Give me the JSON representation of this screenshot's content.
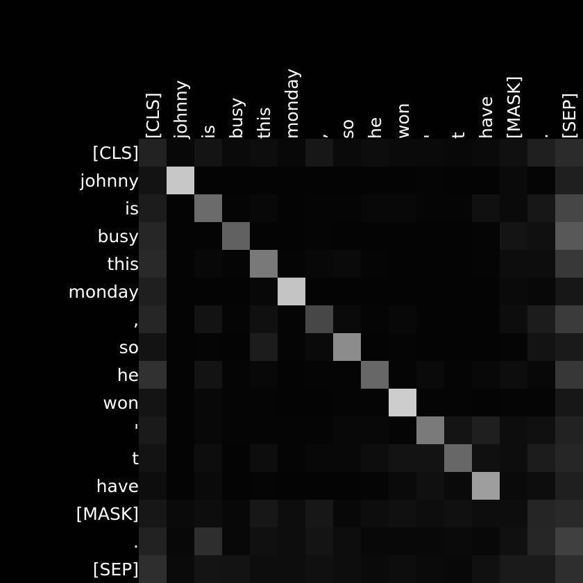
{
  "chart_data": {
    "type": "heatmap",
    "tokens": [
      "[CLS]",
      "johnny",
      "is",
      "busy",
      "this",
      "monday",
      ",",
      "so",
      "he",
      "won",
      "'",
      "t",
      "have",
      "[MASK]",
      ".",
      "[SEP]"
    ],
    "x_tokens": [
      "[CLS]",
      "johnny",
      "is",
      "busy",
      "this",
      "monday",
      ",",
      "so",
      "he",
      "won",
      "'",
      "t",
      "have",
      "[MASK]",
      ".",
      "[SEP]"
    ],
    "y_tokens": [
      "[CLS]",
      "johnny",
      "is",
      "busy",
      "this",
      "monday",
      ",",
      "so",
      "he",
      "won",
      "'",
      "t",
      "have",
      "[MASK]",
      ".",
      "[SEP]"
    ],
    "colormap": "grayscale",
    "value_range": [
      0,
      1
    ],
    "values": [
      [
        0.13,
        0.03,
        0.08,
        0.04,
        0.05,
        0.03,
        0.09,
        0.04,
        0.05,
        0.04,
        0.04,
        0.03,
        0.04,
        0.06,
        0.12,
        0.17
      ],
      [
        0.07,
        0.78,
        0.01,
        0.01,
        0.01,
        0.01,
        0.01,
        0.01,
        0.01,
        0.01,
        0.02,
        0.01,
        0.01,
        0.04,
        0.02,
        0.12
      ],
      [
        0.11,
        0.01,
        0.42,
        0.02,
        0.03,
        0.01,
        0.02,
        0.02,
        0.03,
        0.03,
        0.02,
        0.02,
        0.06,
        0.04,
        0.09,
        0.27
      ],
      [
        0.15,
        0.01,
        0.01,
        0.38,
        0.01,
        0.01,
        0.02,
        0.01,
        0.01,
        0.01,
        0.01,
        0.01,
        0.02,
        0.08,
        0.06,
        0.34
      ],
      [
        0.16,
        0.01,
        0.03,
        0.02,
        0.47,
        0.02,
        0.03,
        0.04,
        0.02,
        0.01,
        0.01,
        0.01,
        0.02,
        0.05,
        0.05,
        0.22
      ],
      [
        0.12,
        0.01,
        0.01,
        0.01,
        0.03,
        0.77,
        0.01,
        0.01,
        0.01,
        0.01,
        0.01,
        0.01,
        0.01,
        0.04,
        0.03,
        0.09
      ],
      [
        0.15,
        0.01,
        0.07,
        0.02,
        0.06,
        0.02,
        0.28,
        0.04,
        0.02,
        0.03,
        0.01,
        0.01,
        0.01,
        0.05,
        0.11,
        0.23
      ],
      [
        0.07,
        0.01,
        0.02,
        0.01,
        0.11,
        0.02,
        0.04,
        0.55,
        0.01,
        0.02,
        0.01,
        0.01,
        0.01,
        0.02,
        0.07,
        0.1
      ],
      [
        0.19,
        0.01,
        0.07,
        0.02,
        0.03,
        0.01,
        0.02,
        0.02,
        0.4,
        0.02,
        0.04,
        0.02,
        0.03,
        0.05,
        0.03,
        0.21
      ],
      [
        0.08,
        0.01,
        0.03,
        0.02,
        0.02,
        0.01,
        0.01,
        0.02,
        0.02,
        0.8,
        0.02,
        0.02,
        0.01,
        0.02,
        0.02,
        0.09
      ],
      [
        0.1,
        0.01,
        0.03,
        0.02,
        0.02,
        0.02,
        0.02,
        0.03,
        0.03,
        0.02,
        0.48,
        0.08,
        0.12,
        0.05,
        0.06,
        0.13
      ],
      [
        0.07,
        0.01,
        0.05,
        0.01,
        0.05,
        0.02,
        0.03,
        0.03,
        0.05,
        0.07,
        0.07,
        0.4,
        0.06,
        0.05,
        0.11,
        0.15
      ],
      [
        0.05,
        0.01,
        0.04,
        0.01,
        0.02,
        0.01,
        0.01,
        0.01,
        0.02,
        0.04,
        0.06,
        0.04,
        0.62,
        0.04,
        0.05,
        0.12
      ],
      [
        0.09,
        0.04,
        0.05,
        0.03,
        0.09,
        0.05,
        0.09,
        0.03,
        0.05,
        0.06,
        0.05,
        0.06,
        0.05,
        0.05,
        0.14,
        0.16
      ],
      [
        0.13,
        0.03,
        0.18,
        0.03,
        0.06,
        0.05,
        0.08,
        0.05,
        0.03,
        0.03,
        0.03,
        0.04,
        0.03,
        0.06,
        0.15,
        0.25
      ],
      [
        0.18,
        0.04,
        0.08,
        0.07,
        0.05,
        0.05,
        0.06,
        0.05,
        0.04,
        0.05,
        0.04,
        0.03,
        0.06,
        0.1,
        0.1,
        0.18
      ]
    ]
  }
}
